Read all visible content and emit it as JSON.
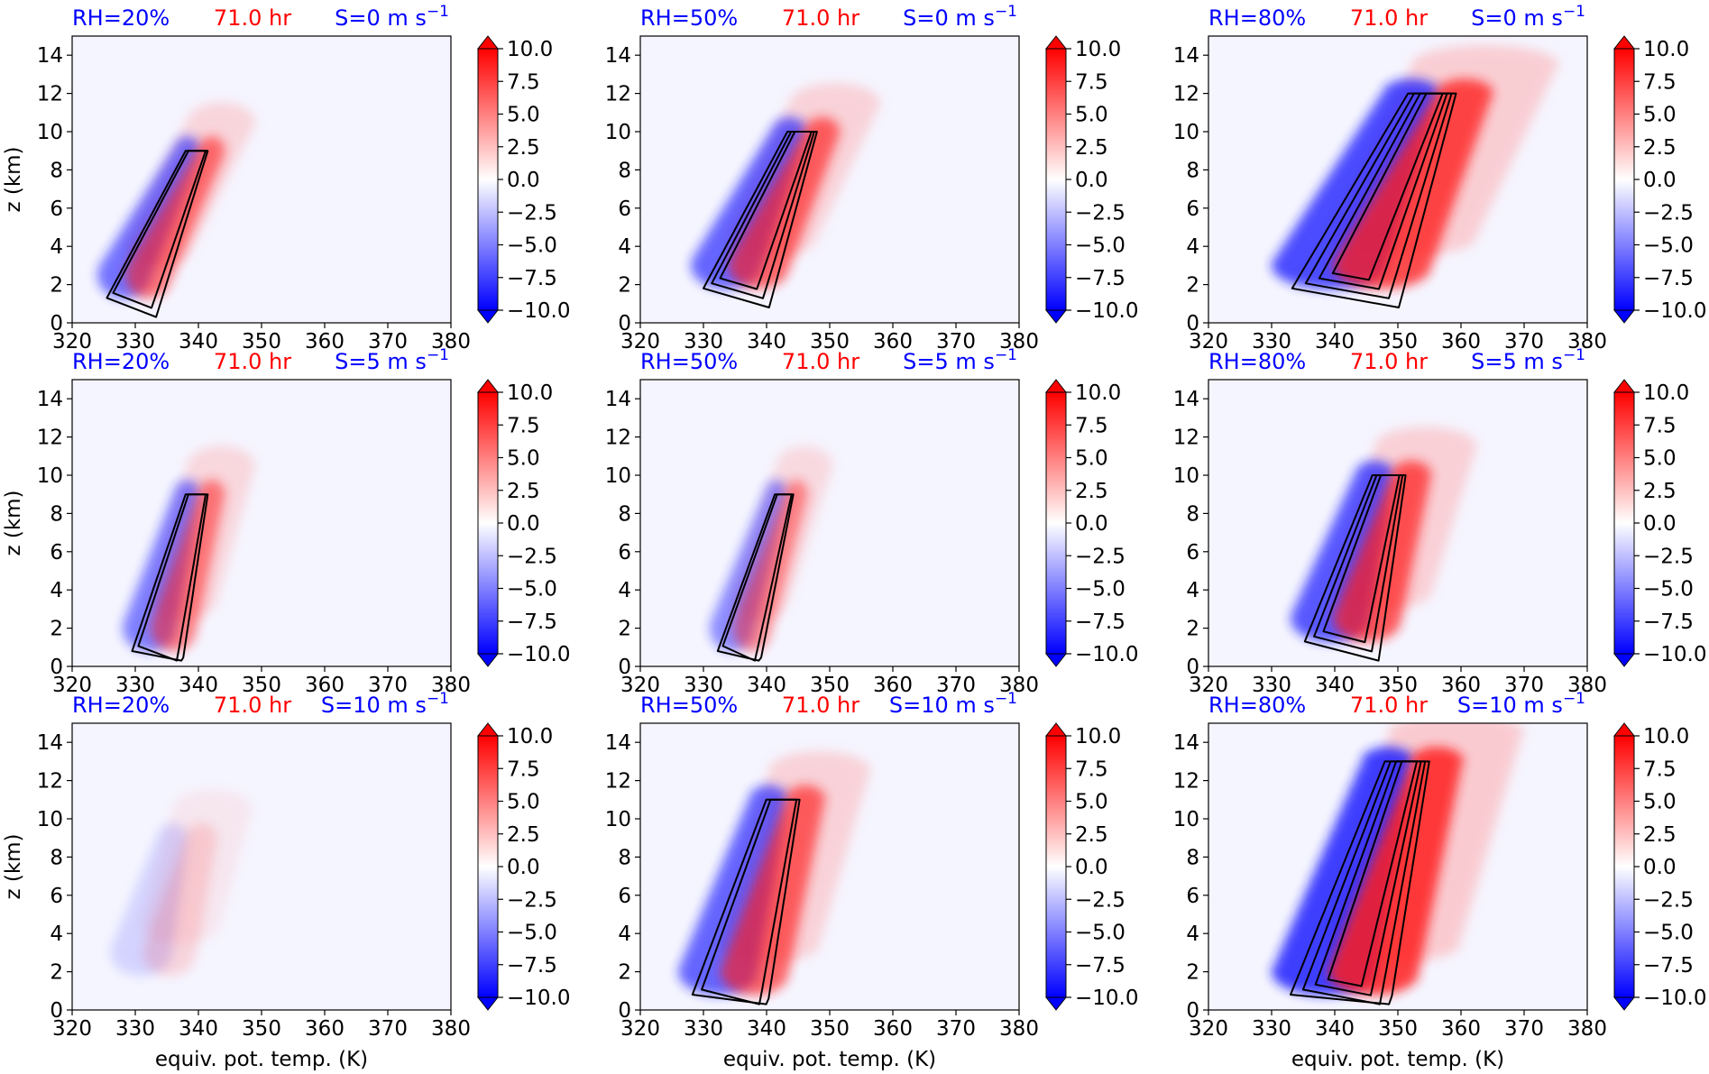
{
  "figure": {
    "time_label": "71.0 hr",
    "xlabel": "equiv. pot. temp. (K)",
    "ylabel": "z (km)",
    "rh_color": "#0000ff",
    "time_color": "#ff0000",
    "shear_color": "#0000ff"
  },
  "chart_data": [
    {
      "type": "heatmap",
      "rh_label": "RH=20%",
      "shear_label": "S=0 m s",
      "shear_exp": "−1",
      "xlim": [
        320,
        380
      ],
      "ylim": [
        0,
        15
      ],
      "xticks": [
        "320",
        "330",
        "340",
        "350",
        "360",
        "370",
        "380"
      ],
      "yticks": [
        "0",
        "2",
        "4",
        "6",
        "8",
        "10",
        "12",
        "14"
      ],
      "colorbar_ticks": [
        "10.0",
        "7.5",
        "5.0",
        "2.5",
        "0.0",
        "−2.5",
        "−5.0",
        "−7.5",
        "−10.0"
      ],
      "colorbar_range": [
        -10,
        10
      ],
      "core": {
        "theta_low": 330,
        "z_low": 2.5,
        "theta_top": 340,
        "z_top": 9,
        "width": 6,
        "strength": 1.0
      },
      "contour_levels": 2
    },
    {
      "type": "heatmap",
      "rh_label": "RH=50%",
      "shear_label": "S=0 m s",
      "shear_exp": "−1",
      "xlim": [
        320,
        380
      ],
      "ylim": [
        0,
        15
      ],
      "xticks": [
        "320",
        "330",
        "340",
        "350",
        "360",
        "370",
        "380"
      ],
      "yticks": [
        "0",
        "2",
        "4",
        "6",
        "8",
        "10",
        "12",
        "14"
      ],
      "colorbar_ticks": [
        "10.0",
        "7.5",
        "5.0",
        "2.5",
        "0.0",
        "−2.5",
        "−5.0",
        "−7.5",
        "−10.0"
      ],
      "colorbar_range": [
        -10,
        10
      ],
      "core": {
        "theta_low": 336,
        "z_low": 3,
        "theta_top": 346,
        "z_top": 10,
        "width": 8,
        "strength": 1.1
      },
      "contour_levels": 3
    },
    {
      "type": "heatmap",
      "rh_label": "RH=80%",
      "shear_label": "S=0 m s",
      "shear_exp": "−1",
      "xlim": [
        320,
        380
      ],
      "ylim": [
        0,
        15
      ],
      "xticks": [
        "320",
        "330",
        "340",
        "350",
        "360",
        "370",
        "380"
      ],
      "yticks": [
        "0",
        "2",
        "4",
        "6",
        "8",
        "10",
        "12",
        "14"
      ],
      "colorbar_ticks": [
        "10.0",
        "7.5",
        "5.0",
        "2.5",
        "0.0",
        "−2.5",
        "−5.0",
        "−7.5",
        "−10.0"
      ],
      "colorbar_range": [
        -10,
        10
      ],
      "core": {
        "theta_low": 343,
        "z_low": 3,
        "theta_top": 356,
        "z_top": 12,
        "width": 13,
        "strength": 1.3
      },
      "contour_levels": 4
    },
    {
      "type": "heatmap",
      "rh_label": "RH=20%",
      "shear_label": "S=5 m s",
      "shear_exp": "−1",
      "xlim": [
        320,
        380
      ],
      "ylim": [
        0,
        15
      ],
      "xticks": [
        "320",
        "330",
        "340",
        "350",
        "360",
        "370",
        "380"
      ],
      "yticks": [
        "0",
        "2",
        "4",
        "6",
        "8",
        "10",
        "12",
        "14"
      ],
      "colorbar_ticks": [
        "10.0",
        "7.5",
        "5.0",
        "2.5",
        "0.0",
        "−2.5",
        "−5.0",
        "−7.5",
        "−10.0"
      ],
      "colorbar_range": [
        -10,
        10
      ],
      "core": {
        "theta_low": 334,
        "z_low": 2,
        "theta_top": 340,
        "z_top": 9,
        "width": 6,
        "strength": 0.9
      },
      "contour_levels": 2
    },
    {
      "type": "heatmap",
      "rh_label": "RH=50%",
      "shear_label": "S=5 m s",
      "shear_exp": "−1",
      "xlim": [
        320,
        380
      ],
      "ylim": [
        0,
        15
      ],
      "xticks": [
        "320",
        "330",
        "340",
        "350",
        "360",
        "370",
        "380"
      ],
      "yticks": [
        "0",
        "2",
        "4",
        "6",
        "8",
        "10",
        "12",
        "14"
      ],
      "colorbar_ticks": [
        "10.0",
        "7.5",
        "5.0",
        "2.5",
        "0.0",
        "−2.5",
        "−5.0",
        "−7.5",
        "−10.0"
      ],
      "colorbar_range": [
        -10,
        10
      ],
      "core": {
        "theta_low": 336,
        "z_low": 2,
        "theta_top": 343,
        "z_top": 9,
        "width": 5,
        "strength": 0.8
      },
      "contour_levels": 2
    },
    {
      "type": "heatmap",
      "rh_label": "RH=80%",
      "shear_label": "S=5 m s",
      "shear_exp": "−1",
      "xlim": [
        320,
        380
      ],
      "ylim": [
        0,
        15
      ],
      "xticks": [
        "320",
        "330",
        "340",
        "350",
        "360",
        "370",
        "380"
      ],
      "yticks": [
        "0",
        "2",
        "4",
        "6",
        "8",
        "10",
        "12",
        "14"
      ],
      "colorbar_ticks": [
        "10.0",
        "7.5",
        "5.0",
        "2.5",
        "0.0",
        "−2.5",
        "−5.0",
        "−7.5",
        "−10.0"
      ],
      "colorbar_range": [
        -10,
        10
      ],
      "core": {
        "theta_low": 342,
        "z_low": 2.5,
        "theta_top": 349,
        "z_top": 10,
        "width": 9,
        "strength": 1.2
      },
      "contour_levels": 3
    },
    {
      "type": "heatmap",
      "rh_label": "RH=20%",
      "shear_label": "S=10 m s",
      "shear_exp": "−1",
      "xlim": [
        320,
        380
      ],
      "ylim": [
        0,
        15
      ],
      "xticks": [
        "320",
        "330",
        "340",
        "350",
        "360",
        "370",
        "380"
      ],
      "yticks": [
        "0",
        "2",
        "4",
        "6",
        "8",
        "10",
        "12",
        "14"
      ],
      "colorbar_ticks": [
        "10.0",
        "7.5",
        "5.0",
        "2.5",
        "0.0",
        "−2.5",
        "−5.0",
        "−7.5",
        "−10.0"
      ],
      "colorbar_range": [
        -10,
        10
      ],
      "core": {
        "theta_low": 333,
        "z_low": 3,
        "theta_top": 338,
        "z_top": 9,
        "width": 7,
        "strength": 0.25
      },
      "contour_levels": 0
    },
    {
      "type": "heatmap",
      "rh_label": "RH=50%",
      "shear_label": "S=10 m s",
      "shear_exp": "−1",
      "xlim": [
        320,
        380
      ],
      "ylim": [
        0,
        15
      ],
      "xticks": [
        "320",
        "330",
        "340",
        "350",
        "360",
        "370",
        "380"
      ],
      "yticks": [
        "0",
        "2",
        "4",
        "6",
        "8",
        "10",
        "12",
        "14"
      ],
      "colorbar_ticks": [
        "10.0",
        "7.5",
        "5.0",
        "2.5",
        "0.0",
        "−2.5",
        "−5.0",
        "−7.5",
        "−10.0"
      ],
      "colorbar_range": [
        -10,
        10
      ],
      "core": {
        "theta_low": 335,
        "z_low": 2,
        "theta_top": 343,
        "z_top": 11,
        "width": 9,
        "strength": 1.1
      },
      "contour_levels": 2
    },
    {
      "type": "heatmap",
      "rh_label": "RH=80%",
      "shear_label": "S=10 m s",
      "shear_exp": "−1",
      "xlim": [
        320,
        380
      ],
      "ylim": [
        0,
        15
      ],
      "xticks": [
        "320",
        "330",
        "340",
        "350",
        "360",
        "370",
        "380"
      ],
      "yticks": [
        "0",
        "2",
        "4",
        "6",
        "8",
        "10",
        "12",
        "14"
      ],
      "colorbar_ticks": [
        "10.0",
        "7.5",
        "5.0",
        "2.5",
        "0.0",
        "−2.5",
        "−5.0",
        "−7.5",
        "−10.0"
      ],
      "colorbar_range": [
        -10,
        10
      ],
      "core": {
        "theta_low": 342,
        "z_low": 2,
        "theta_top": 352,
        "z_top": 13,
        "width": 12,
        "strength": 1.4
      },
      "contour_levels": 4
    }
  ]
}
